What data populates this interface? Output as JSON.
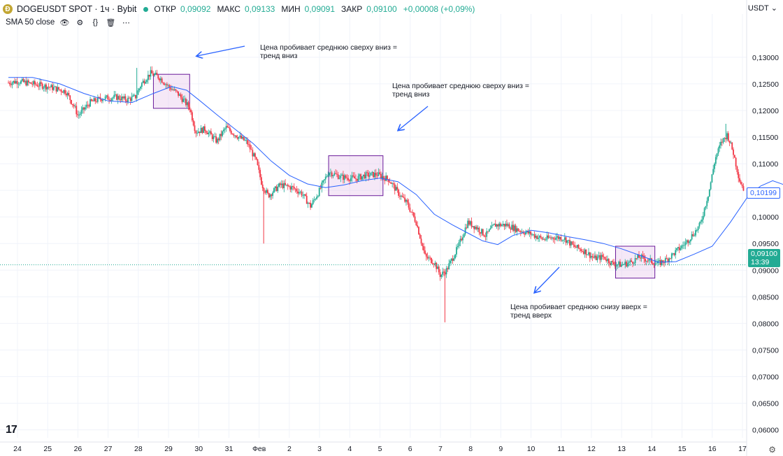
{
  "header": {
    "symbol": "DOGEUSDT SPOT · 1ч · Bybit",
    "open_label": "ОТКР",
    "open": "0,09092",
    "high_label": "МАКС",
    "high": "0,09133",
    "low_label": "МИН",
    "low": "0,09091",
    "close_label": "ЗАКР",
    "close": "0,09100",
    "change": "+0,00008 (+0,09%)"
  },
  "indicator": {
    "label": "SMA 50 close"
  },
  "currency": "USDT",
  "current_price": "0,09100",
  "countdown": "13:39",
  "sma_last_value": "0,10199",
  "annotations": [
    "Цена пробивает среднюю сверху вниз =\nтренд вниз",
    "Цена пробивает среднюю сверху вниз =\nтренд вниз",
    "Цена пробивает среднюю снизу вверх =\nтренд вверх"
  ],
  "colors": {
    "up": "#22ab94",
    "down": "#f23645",
    "sma": "#2962ff",
    "box_fill": "#e1bee7",
    "box_stroke": "#6a1b9a"
  },
  "chart_data": {
    "type": "candlestick",
    "y_ticks": [
      "0,13000",
      "0,12500",
      "0,12000",
      "0,11500",
      "0,11000",
      "0,10500",
      "0,10000",
      "0,09500",
      "0,09000",
      "0,08500",
      "0,08000",
      "0,07500",
      "0,07000",
      "0,06500",
      "0,06000"
    ],
    "y_range": [
      0.0585,
      0.1355
    ],
    "x_ticks": [
      "24",
      "25",
      "26",
      "27",
      "28",
      "29",
      "30",
      "31",
      "Фев",
      "2",
      "3",
      "4",
      "5",
      "6",
      "7",
      "8",
      "9",
      "10",
      "11",
      "12",
      "13",
      "14",
      "15",
      "16",
      "17"
    ],
    "x_range_days": [
      23.7,
      48.5
    ],
    "price_path": [
      [
        23.7,
        0.1252
      ],
      [
        24.0,
        0.1255
      ],
      [
        24.5,
        0.125
      ],
      [
        25.0,
        0.1245
      ],
      [
        25.6,
        0.1236
      ],
      [
        25.9,
        0.1205
      ],
      [
        26.0,
        0.119
      ],
      [
        26.4,
        0.1215
      ],
      [
        26.8,
        0.1223
      ],
      [
        27.3,
        0.1225
      ],
      [
        27.6,
        0.122
      ],
      [
        27.9,
        0.1225
      ],
      [
        28.1,
        0.125
      ],
      [
        28.4,
        0.127
      ],
      [
        28.7,
        0.1262
      ],
      [
        29.0,
        0.1245
      ],
      [
        29.3,
        0.1232
      ],
      [
        29.7,
        0.1205
      ],
      [
        29.9,
        0.116
      ],
      [
        30.2,
        0.1165
      ],
      [
        30.6,
        0.1142
      ],
      [
        30.9,
        0.1168
      ],
      [
        31.2,
        0.1155
      ],
      [
        31.6,
        0.114
      ],
      [
        31.9,
        0.1105
      ],
      [
        32.1,
        0.106
      ],
      [
        32.3,
        0.104
      ],
      [
        32.7,
        0.106
      ],
      [
        33.1,
        0.1055
      ],
      [
        33.4,
        0.1045
      ],
      [
        33.7,
        0.102
      ],
      [
        34.0,
        0.105
      ],
      [
        34.3,
        0.1085
      ],
      [
        34.7,
        0.1075
      ],
      [
        35.2,
        0.1072
      ],
      [
        35.5,
        0.1078
      ],
      [
        35.9,
        0.108
      ],
      [
        36.3,
        0.107
      ],
      [
        36.6,
        0.1045
      ],
      [
        36.9,
        0.1025
      ],
      [
        37.2,
        0.099
      ],
      [
        37.5,
        0.0925
      ],
      [
        37.8,
        0.0915
      ],
      [
        38.0,
        0.089
      ],
      [
        38.2,
        0.09
      ],
      [
        38.6,
        0.0945
      ],
      [
        38.9,
        0.099
      ],
      [
        39.2,
        0.098
      ],
      [
        39.5,
        0.0965
      ],
      [
        39.8,
        0.0985
      ],
      [
        40.2,
        0.0985
      ],
      [
        40.6,
        0.0975
      ],
      [
        41.0,
        0.0968
      ],
      [
        41.4,
        0.0958
      ],
      [
        41.8,
        0.0962
      ],
      [
        42.1,
        0.096
      ],
      [
        42.4,
        0.0945
      ],
      [
        42.8,
        0.0935
      ],
      [
        43.1,
        0.0922
      ],
      [
        43.4,
        0.0925
      ],
      [
        43.7,
        0.0912
      ],
      [
        44.0,
        0.091
      ],
      [
        44.3,
        0.0915
      ],
      [
        44.6,
        0.0925
      ],
      [
        44.9,
        0.0918
      ],
      [
        45.2,
        0.0912
      ],
      [
        45.5,
        0.092
      ],
      [
        45.8,
        0.0935
      ],
      [
        46.1,
        0.095
      ],
      [
        46.4,
        0.097
      ],
      [
        46.6,
        0.0985
      ],
      [
        46.9,
        0.105
      ],
      [
        47.1,
        0.111
      ],
      [
        47.3,
        0.114
      ],
      [
        47.5,
        0.1155
      ],
      [
        47.7,
        0.112
      ],
      [
        47.9,
        0.107
      ],
      [
        48.1,
        0.1045
      ],
      [
        48.4,
        0.103
      ],
      [
        48.7,
        0.102
      ],
      [
        49.0,
        0.1005
      ],
      [
        49.4,
        0.1
      ],
      [
        49.8,
        0.0995
      ],
      [
        50.0,
        0.101
      ]
    ],
    "sma_path": [
      [
        23.7,
        0.1262
      ],
      [
        24.5,
        0.1262
      ],
      [
        25.4,
        0.125
      ],
      [
        26.2,
        0.1232
      ],
      [
        27.0,
        0.1218
      ],
      [
        27.8,
        0.1215
      ],
      [
        28.5,
        0.1232
      ],
      [
        29.1,
        0.1245
      ],
      [
        29.6,
        0.1238
      ],
      [
        30.0,
        0.122
      ],
      [
        30.6,
        0.1192
      ],
      [
        31.2,
        0.1165
      ],
      [
        31.8,
        0.1138
      ],
      [
        32.4,
        0.1105
      ],
      [
        33.0,
        0.1078
      ],
      [
        33.6,
        0.1062
      ],
      [
        34.2,
        0.1055
      ],
      [
        34.8,
        0.106
      ],
      [
        35.4,
        0.1068
      ],
      [
        36.0,
        0.1073
      ],
      [
        36.6,
        0.1066
      ],
      [
        37.2,
        0.1042
      ],
      [
        37.8,
        0.1005
      ],
      [
        38.4,
        0.0985
      ],
      [
        38.9,
        0.097
      ],
      [
        39.4,
        0.0955
      ],
      [
        39.9,
        0.0948
      ],
      [
        40.4,
        0.0965
      ],
      [
        41.0,
        0.0975
      ],
      [
        41.6,
        0.097
      ],
      [
        42.2,
        0.0963
      ],
      [
        42.8,
        0.0957
      ],
      [
        43.4,
        0.095
      ],
      [
        44.0,
        0.094
      ],
      [
        44.6,
        0.0928
      ],
      [
        45.2,
        0.0915
      ],
      [
        45.8,
        0.0916
      ],
      [
        46.4,
        0.093
      ],
      [
        47.0,
        0.0945
      ],
      [
        47.6,
        0.099
      ],
      [
        48.2,
        0.104
      ],
      [
        48.6,
        0.1058
      ],
      [
        49.0,
        0.1068
      ],
      [
        49.4,
        0.106
      ],
      [
        49.8,
        0.1035
      ],
      [
        50.1,
        0.102
      ]
    ],
    "boxes": [
      {
        "x0": 28.5,
        "x1": 29.7,
        "y0": 0.1204,
        "y1": 0.1268
      },
      {
        "x0": 34.3,
        "x1": 36.1,
        "y0": 0.104,
        "y1": 0.1115
      },
      {
        "x0": 43.8,
        "x1": 45.1,
        "y0": 0.0885,
        "y1": 0.0945
      }
    ]
  }
}
